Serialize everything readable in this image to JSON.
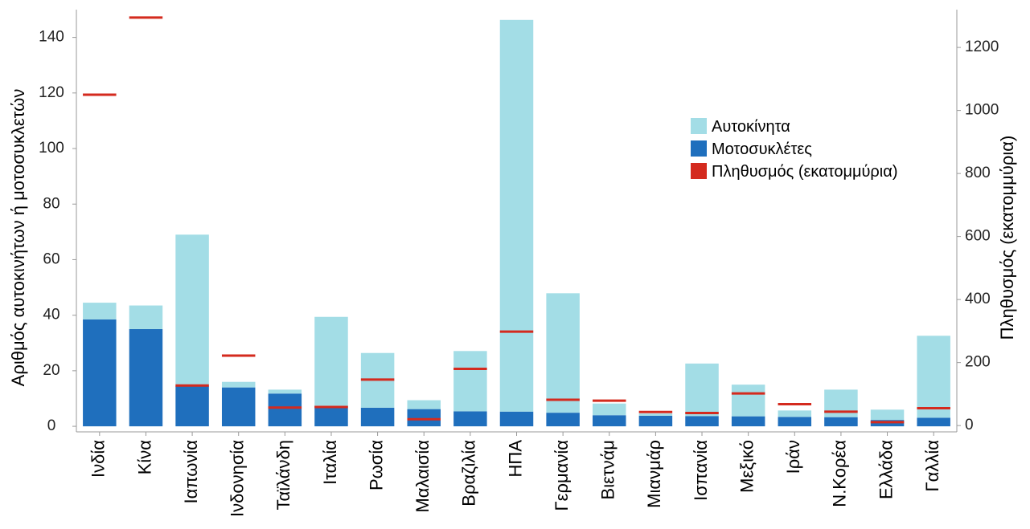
{
  "chart_data": {
    "type": "bar",
    "stacked": true,
    "categories": [
      "Ινδία",
      "Κίνα",
      "Ιαπωνία",
      "Ινδονησία",
      "Ταϊλάνδη",
      "Ιταλία",
      "Ρωσία",
      "Μαλαισία",
      "Βραζιλία",
      "ΗΠΑ",
      "Γερμανία",
      "Βιετνάμ",
      "Μιανμάρ",
      "Ισπανία",
      "Μεξικό",
      "Ιράν",
      "Ν.Κορέα",
      "Ελλάδα",
      "Γαλλία"
    ],
    "series": [
      {
        "name": "Μοτοσυκλέτες",
        "axis": "left",
        "color": "#1f6fbd",
        "values": [
          38.5,
          35,
          14.5,
          14,
          11.8,
          7.4,
          6.7,
          6.2,
          5.4,
          5.3,
          4.9,
          4,
          3.8,
          3.7,
          3.6,
          3.4,
          3.3,
          2.3,
          3.1
        ]
      },
      {
        "name": "Αυτοκίνητα",
        "axis": "left",
        "color": "#a3dde6",
        "values": [
          6,
          8.5,
          54.5,
          2,
          1.4,
          32,
          19.7,
          3.2,
          21.7,
          141,
          43,
          4.2,
          0.8,
          18.9,
          11.4,
          2.3,
          9.9,
          3.7,
          29.5
        ]
      },
      {
        "name": "Πληθυσμός (εκατομμύρια)",
        "axis": "right",
        "color": "#d42a1e",
        "kind": "marker",
        "values": [
          1050,
          1295,
          127,
          222,
          57,
          59,
          146,
          20,
          180,
          298,
          82,
          79,
          43,
          40,
          102,
          68,
          44,
          11,
          55
        ]
      }
    ],
    "ylabel": "Αριθμός αυτοκινήτων ή μοτοσυκλετών",
    "y2label": "Πληθυσμός (εκατομμύρια)",
    "ylim": [
      -2,
      150
    ],
    "y2lim": [
      -20,
      1320
    ],
    "yticks": [
      "0",
      "20",
      "40",
      "60",
      "80",
      "100",
      "120",
      "140"
    ],
    "y2ticks": [
      "0",
      "200",
      "400",
      "600",
      "800",
      "1000",
      "1200"
    ],
    "legend": {
      "position": "top-right",
      "items": [
        "Αυτοκίνητα",
        "Μοτοσυκλέτες",
        "Πληθυσμός (εκατομμύρια)"
      ]
    },
    "grid": false
  }
}
